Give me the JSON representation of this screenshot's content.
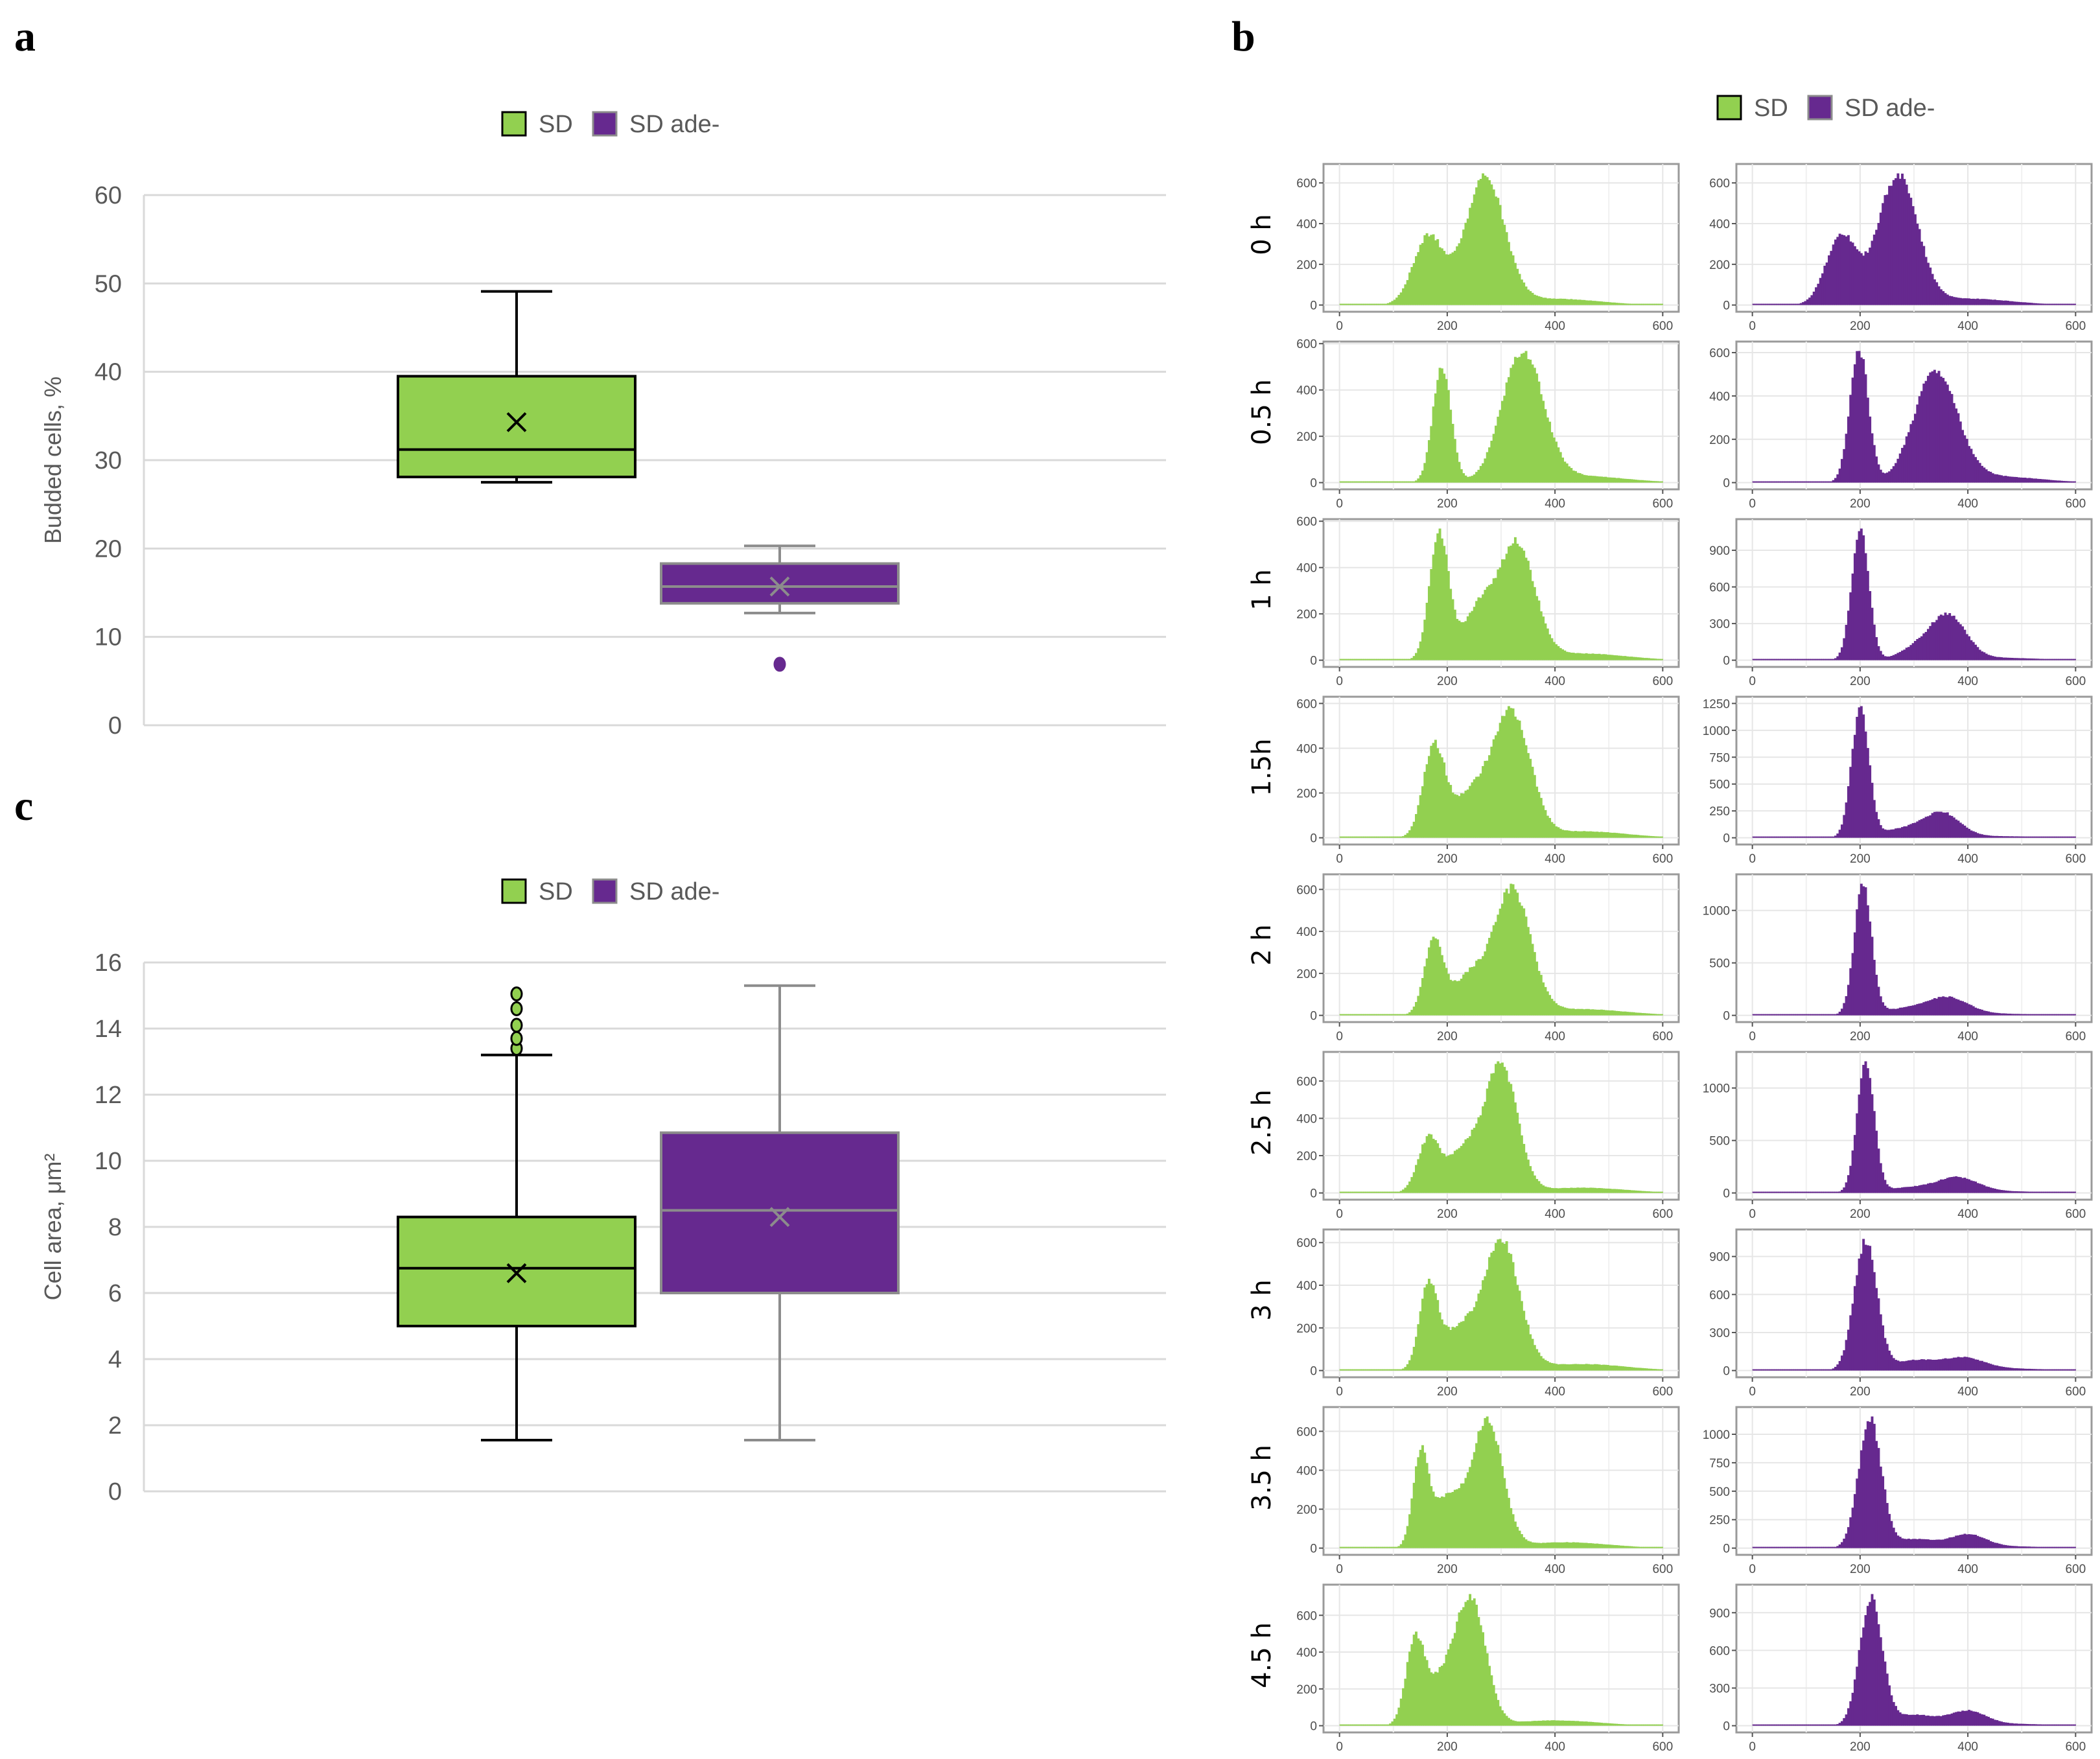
{
  "colors": {
    "sd": "#92D050",
    "sd_ade": "#66298F",
    "sd_border": "#000000",
    "ade_border": "#8C8C8C",
    "grid": "#D9D9D9"
  },
  "panel_labels": {
    "a": "a",
    "b": "b",
    "c": "c"
  },
  "legend": {
    "sd": "SD",
    "sd_ade": "SD ade-"
  },
  "chart_data": [
    {
      "id": "a",
      "type": "box",
      "ylabel": "Budded cells, %",
      "ylim": [
        0,
        60
      ],
      "yticks": [
        0,
        10,
        20,
        30,
        40,
        50,
        60
      ],
      "grid": true,
      "legend_position": "top",
      "series": [
        {
          "name": "SD",
          "whisker_low": 27.5,
          "q1": 28.1,
          "median": 31.2,
          "q3": 39.5,
          "whisker_high": 49.1,
          "mean": 34.3,
          "outliers": []
        },
        {
          "name": "SD ade-",
          "whisker_low": 12.7,
          "q1": 13.8,
          "median": 15.7,
          "q3": 18.3,
          "whisker_high": 20.3,
          "mean": 15.7,
          "outliers": [
            6.9
          ]
        }
      ]
    },
    {
      "id": "c",
      "type": "box",
      "ylabel": "Cell area, μm²",
      "ylim": [
        0,
        16
      ],
      "yticks": [
        0,
        2,
        4,
        6,
        8,
        10,
        12,
        14,
        16
      ],
      "grid": true,
      "legend_position": "top",
      "series": [
        {
          "name": "SD",
          "whisker_low": 1.55,
          "q1": 5.0,
          "median": 6.75,
          "q3": 8.3,
          "whisker_high": 13.2,
          "mean": 6.6,
          "outliers": [
            13.4,
            13.7,
            14.1,
            14.6,
            15.05
          ]
        },
        {
          "name": "SD ade-",
          "whisker_low": 1.55,
          "q1": 6.0,
          "median": 8.5,
          "q3": 10.85,
          "whisker_high": 15.3,
          "mean": 8.3,
          "outliers": []
        }
      ]
    },
    {
      "id": "b",
      "type": "histogram",
      "legend_position": "top",
      "xlim": [
        0,
        600
      ],
      "xticks": [
        0,
        200,
        400,
        600
      ],
      "bin_width": 4,
      "note": "components are approximate gaussian peaks [center, sd, height] in data units",
      "rows": [
        {
          "label": "0 h",
          "sd": {
            "ylim": [
              0,
              660
            ],
            "yticks": [
              0,
              200,
              400,
              600
            ],
            "components": [
              [
                165,
                28,
                330
              ],
              [
                270,
                36,
                610
              ],
              [
                400,
                80,
                30
              ]
            ]
          },
          "sd_ade": {
            "ylim": [
              0,
              660
            ],
            "yticks": [
              0,
              200,
              400,
              600
            ],
            "components": [
              [
                165,
                28,
                330
              ],
              [
                270,
                36,
                610
              ],
              [
                400,
                80,
                30
              ]
            ]
          }
        },
        {
          "label": "0.5 h",
          "sd": {
            "ylim": [
              0,
              580
            ],
            "yticks": [
              0,
              200,
              400,
              600
            ],
            "components": [
              [
                190,
                17,
                500
              ],
              [
                340,
                38,
                560
              ],
              [
                450,
                80,
                28
              ]
            ]
          },
          "sd_ade": {
            "ylim": [
              0,
              620
            ],
            "yticks": [
              0,
              200,
              400,
              600
            ],
            "components": [
              [
                198,
                17,
                600
              ],
              [
                340,
                40,
                490
              ],
              [
                450,
                80,
                28
              ]
            ]
          }
        },
        {
          "label": "1 h",
          "sd": {
            "ylim": [
              0,
              580
            ],
            "yticks": [
              0,
              200,
              400,
              600
            ],
            "components": [
              [
                185,
                18,
                520
              ],
              [
                260,
                30,
                210
              ],
              [
                330,
                33,
                470
              ],
              [
                450,
                80,
                28
              ]
            ]
          },
          "sd_ade": {
            "ylim": [
              0,
              1100
            ],
            "yticks": [
              0,
              300,
              600,
              900
            ],
            "components": [
              [
                200,
                16,
                1050
              ],
              [
                300,
                30,
                80
              ],
              [
                362,
                33,
                360
              ],
              [
                450,
                80,
                20
              ]
            ]
          }
        },
        {
          "label": "1.5h",
          "sd": {
            "ylim": [
              0,
              600
            ],
            "yticks": [
              0,
              200,
              400,
              600
            ],
            "components": [
              [
                175,
                20,
                400
              ],
              [
                250,
                40,
                210
              ],
              [
                322,
                33,
                540
              ],
              [
                450,
                80,
                30
              ]
            ]
          },
          "sd_ade": {
            "ylim": [
              0,
              1250
            ],
            "yticks": [
              0,
              250,
              500,
              750,
              1000,
              1250
            ],
            "components": [
              [
                200,
                16,
                1200
              ],
              [
                280,
                40,
                80
              ],
              [
                352,
                33,
                220
              ],
              [
                450,
                80,
                15
              ]
            ]
          }
        },
        {
          "label": "2 h",
          "sd": {
            "ylim": [
              0,
              640
            ],
            "yticks": [
              0,
              200,
              400,
              600
            ],
            "components": [
              [
                175,
                18,
                350
              ],
              [
                240,
                30,
                180
              ],
              [
                320,
                34,
                600
              ],
              [
                450,
                80,
                30
              ]
            ]
          },
          "sd_ade": {
            "ylim": [
              0,
              1280
            ],
            "yticks": [
              0,
              500,
              1000
            ],
            "components": [
              [
                205,
                16,
                1250
              ],
              [
                280,
                40,
                60
              ],
              [
                362,
                38,
                165
              ],
              [
                460,
                80,
                15
              ]
            ]
          }
        },
        {
          "label": "2.5 h",
          "sd": {
            "ylim": [
              0,
              720
            ],
            "yticks": [
              0,
              200,
              400,
              600
            ],
            "components": [
              [
                165,
                20,
                280
              ],
              [
                230,
                30,
                220
              ],
              [
                300,
                30,
                670
              ],
              [
                450,
                80,
                28
              ]
            ]
          },
          "sd_ade": {
            "ylim": [
              0,
              1280
            ],
            "yticks": [
              0,
              500,
              1000
            ],
            "components": [
              [
                210,
                16,
                1250
              ],
              [
                290,
                40,
                50
              ],
              [
                380,
                38,
                145
              ],
              [
                470,
                80,
                15
              ]
            ]
          }
        },
        {
          "label": "3 h",
          "sd": {
            "ylim": [
              0,
              630
            ],
            "yticks": [
              0,
              200,
              400,
              600
            ],
            "components": [
              [
                165,
                17,
                380
              ],
              [
                220,
                30,
                180
              ],
              [
                300,
                33,
                600
              ],
              [
                450,
                80,
                30
              ]
            ]
          },
          "sd_ade": {
            "ylim": [
              0,
              1060
            ],
            "yticks": [
              0,
              300,
              600,
              900
            ],
            "components": [
              [
                210,
                21,
                1040
              ],
              [
                300,
                40,
                80
              ],
              [
                392,
                38,
                95
              ],
              [
                480,
                70,
                15
              ]
            ]
          }
        },
        {
          "label": "3.5 h",
          "sd": {
            "ylim": [
              0,
              690
            ],
            "yticks": [
              0,
              200,
              400,
              600
            ],
            "components": [
              [
                150,
                14,
                450
              ],
              [
                200,
                30,
                260
              ],
              [
                275,
                28,
                650
              ],
              [
                420,
                80,
                30
              ]
            ]
          },
          "sd_ade": {
            "ylim": [
              0,
              1180
            ],
            "yticks": [
              0,
              250,
              500,
              750,
              1000
            ],
            "components": [
              [
                218,
                21,
                1150
              ],
              [
                300,
                40,
                80
              ],
              [
                400,
                33,
                115
              ],
              [
                480,
                70,
                15
              ]
            ]
          }
        },
        {
          "label": "4.5 h",
          "sd": {
            "ylim": [
              0,
              730
            ],
            "yticks": [
              0,
              200,
              400,
              600
            ],
            "components": [
              [
                140,
                17,
                450
              ],
              [
                190,
                30,
                250
              ],
              [
                245,
                27,
                680
              ],
              [
                400,
                80,
                30
              ]
            ]
          },
          "sd_ade": {
            "ylim": [
              0,
              1070
            ],
            "yticks": [
              0,
              300,
              600,
              900
            ],
            "components": [
              [
                220,
                21,
                1040
              ],
              [
                300,
                40,
                90
              ],
              [
                400,
                33,
                115
              ],
              [
                480,
                70,
                15
              ]
            ]
          }
        }
      ]
    }
  ]
}
